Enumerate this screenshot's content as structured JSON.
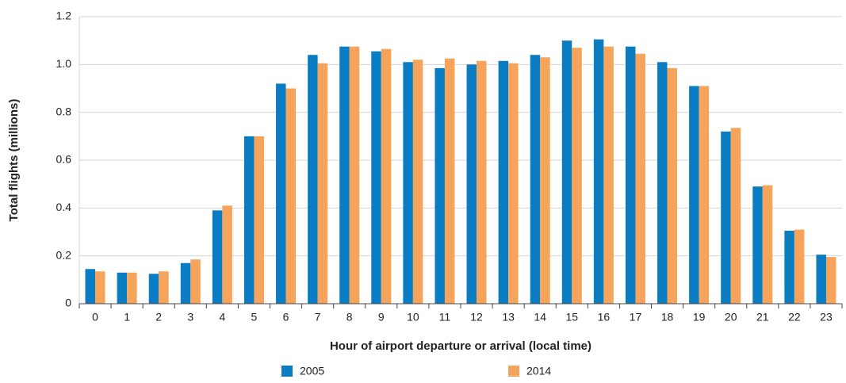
{
  "chart_data": {
    "type": "bar",
    "y_label": "Total flights (millions)",
    "x_label": "Hour of airport departure or arrival (local time)",
    "categories": [
      "0",
      "1",
      "2",
      "3",
      "4",
      "5",
      "6",
      "7",
      "8",
      "9",
      "10",
      "11",
      "12",
      "13",
      "14",
      "15",
      "16",
      "17",
      "18",
      "19",
      "20",
      "21",
      "22",
      "23"
    ],
    "series": [
      {
        "name": "2005",
        "color": "#0a7dc2",
        "values": [
          0.145,
          0.13,
          0.125,
          0.17,
          0.39,
          0.7,
          0.92,
          1.04,
          1.075,
          1.055,
          1.01,
          0.985,
          1.0,
          1.015,
          1.04,
          1.1,
          1.105,
          1.075,
          1.01,
          0.91,
          0.72,
          0.49,
          0.305,
          0.205
        ]
      },
      {
        "name": "2014",
        "color": "#f6a45c",
        "values": [
          0.135,
          0.13,
          0.135,
          0.185,
          0.41,
          0.7,
          0.9,
          1.005,
          1.075,
          1.065,
          1.02,
          1.025,
          1.015,
          1.005,
          1.03,
          1.07,
          1.075,
          1.045,
          0.985,
          0.91,
          0.735,
          0.495,
          0.31,
          0.195
        ]
      }
    ],
    "ylim": [
      0,
      1.2
    ],
    "yticks": [
      0,
      0.2,
      0.4,
      0.6,
      0.8,
      {
        "value": 1,
        "label": "1.0"
      },
      1.2
    ],
    "grid": true,
    "legend": "bottom"
  }
}
